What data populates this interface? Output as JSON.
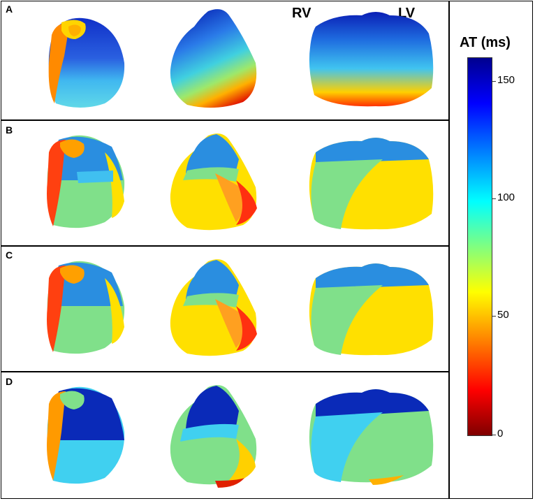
{
  "panels": [
    {
      "label": "A"
    },
    {
      "label": "B"
    },
    {
      "label": "C"
    },
    {
      "label": "D"
    }
  ],
  "view_labels": {
    "rv": "RV",
    "lv": "LV"
  },
  "colorbar": {
    "title": "AT (ms)",
    "ticks": [
      "150",
      "100",
      "50",
      "0"
    ],
    "range": [
      0,
      160
    ]
  },
  "colors": {
    "dark_red": "#7f0000",
    "red": "#ff1a00",
    "orange": "#ff9900",
    "yellow": "#ffe600",
    "green": "#7fe08a",
    "cyan": "#33c7f0",
    "blue": "#2a6fe0",
    "dark_blue": "#0a1fb5"
  }
}
